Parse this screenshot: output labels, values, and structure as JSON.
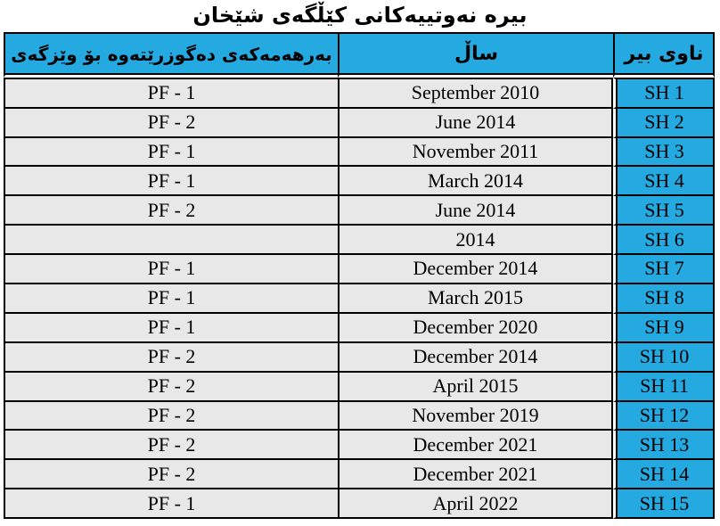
{
  "title": "بیره نەوتییەکانی کێڵگەی شێخان",
  "table": {
    "headers": {
      "destination": "بەرهەمەکەی دەگوزرێتەوە بۆ وێزگەی",
      "year": "ساڵ",
      "well_name": "ناوی بیر"
    },
    "rows": [
      {
        "facility": "PF - 1",
        "date": "September 2010",
        "well": "SH 1"
      },
      {
        "facility": "PF - 2",
        "date": "June 2014",
        "well": "SH 2"
      },
      {
        "facility": "PF - 1",
        "date": "November 2011",
        "well": "SH 3"
      },
      {
        "facility": "PF - 1",
        "date": "March 2014",
        "well": "SH 4"
      },
      {
        "facility": "PF - 2",
        "date": "June 2014",
        "well": "SH 5"
      },
      {
        "facility": "",
        "date": "2014",
        "well": "SH 6"
      },
      {
        "facility": "PF - 1",
        "date": "December 2014",
        "well": "SH 7"
      },
      {
        "facility": "PF - 1",
        "date": "March 2015",
        "well": "SH 8"
      },
      {
        "facility": "PF - 1",
        "date": "December 2020",
        "well": "SH 9"
      },
      {
        "facility": "PF - 2",
        "date": "December 2014",
        "well": "SH 10"
      },
      {
        "facility": "PF - 2",
        "date": "April 2015",
        "well": "SH 11"
      },
      {
        "facility": "PF - 2",
        "date": "November 2019",
        "well": "SH 12"
      },
      {
        "facility": "PF - 2",
        "date": "December 2021",
        "well": "SH 13"
      },
      {
        "facility": "PF - 2",
        "date": "December 2021",
        "well": "SH 14"
      },
      {
        "facility": "PF - 1",
        "date": "April 2022",
        "well": "SH 15"
      }
    ]
  },
  "colors": {
    "header_blue": "#24A9E1",
    "row_gray": "#E8E8E8",
    "border_black": "#000000"
  }
}
